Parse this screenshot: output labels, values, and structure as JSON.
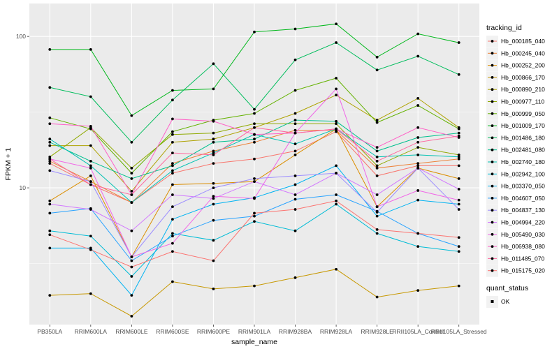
{
  "chart_data": {
    "type": "line",
    "xlabel": "sample_name",
    "ylabel": "FPKM + 1",
    "y_scale": "log10",
    "ylim": [
      1.25,
      165
    ],
    "y_ticks": [
      10,
      100
    ],
    "y_tick_labels": [
      "10",
      "100"
    ],
    "grid": true,
    "legend_position": "right",
    "categories": [
      "PB350LA",
      "RRIM600LA",
      "RRIM600LE",
      "RRIM600SE",
      "RRIM600PE",
      "RRIM901LA",
      "RRIM928BA",
      "RRIM928LA",
      "RRIM928LE",
      "RRII105LA_Control",
      "RRII105LA_Stressed"
    ],
    "category_labels": [
      "PB350LA",
      "RRIM600LA",
      "RRIM600LE",
      "RRIM600SE",
      "RRIM600PE",
      "RRIM901LA",
      "RRIM928BA",
      "RRIM928LA",
      "RRIM928LE",
      "RRII105LA_Control",
      "RRII105LA_Stressed"
    ],
    "legend_color_title": "tracking_id",
    "legend_shape_title": "quant_status",
    "legend_shape_entries": [
      "OK"
    ],
    "series": [
      {
        "name": "Hb_000185_040",
        "color": "#F8766D",
        "values": [
          14.5,
          10.5,
          8.0,
          12.5,
          14.5,
          15.5,
          17.5,
          23.5,
          12.0,
          14.0,
          14.0
        ]
      },
      {
        "name": "Hb_000245_040",
        "color": "#EC8239",
        "values": [
          15.0,
          11.0,
          8.0,
          14.5,
          17.5,
          20.0,
          24.0,
          24.0,
          13.5,
          14.5,
          15.5
        ]
      },
      {
        "name": "Hb_000252_200",
        "color": "#DB8E00",
        "values": [
          8.2,
          12.0,
          3.5,
          10.5,
          10.7,
          11.0,
          16.5,
          24.5,
          7.5,
          13.5,
          11.5
        ]
      },
      {
        "name": "Hb_000866_170",
        "color": "#C79800",
        "values": [
          1.95,
          2.0,
          1.42,
          2.4,
          2.15,
          2.25,
          2.55,
          2.9,
          1.9,
          2.1,
          2.25
        ]
      },
      {
        "name": "Hb_000890_210",
        "color": "#AEA200",
        "values": [
          19.0,
          19.0,
          9.5,
          20.0,
          21.0,
          25.0,
          31.0,
          41.0,
          28.0,
          39.0,
          25.0
        ]
      },
      {
        "name": "Hb_000977_110",
        "color": "#8FAA00",
        "values": [
          16.0,
          25.0,
          13.5,
          22.5,
          23.0,
          26.5,
          26.5,
          26.5,
          14.0,
          18.5,
          16.5
        ]
      },
      {
        "name": "Hb_000999_050",
        "color": "#64B200",
        "values": [
          29.0,
          24.5,
          12.5,
          23.5,
          28.0,
          31.0,
          44.0,
          53.0,
          27.0,
          35.0,
          24.5
        ]
      },
      {
        "name": "Hb_001009_170",
        "color": "#00B81B",
        "values": [
          82.0,
          82.0,
          30.0,
          44.0,
          45.0,
          107.0,
          112.0,
          121.0,
          73.0,
          104.0,
          91.0
        ]
      },
      {
        "name": "Hb_001486_180",
        "color": "#00BD5C",
        "values": [
          46.0,
          40.0,
          20.0,
          38.0,
          66.0,
          33.0,
          70.0,
          91.0,
          60.0,
          74.0,
          56.0
        ]
      },
      {
        "name": "Hb_002481_080",
        "color": "#00C08E",
        "values": [
          20.0,
          15.0,
          11.5,
          14.0,
          20.0,
          21.0,
          28.0,
          27.5,
          17.5,
          21.5,
          23.0
        ]
      },
      {
        "name": "Hb_002740_180",
        "color": "#00C1B2",
        "values": [
          21.0,
          14.0,
          8.0,
          13.0,
          17.0,
          22.5,
          19.5,
          24.5,
          16.0,
          16.5,
          16.0
        ]
      },
      {
        "name": "Hb_002942_100",
        "color": "#00BCD6",
        "values": [
          5.2,
          4.8,
          2.6,
          5.0,
          4.5,
          6.0,
          5.2,
          7.8,
          5.0,
          4.1,
          3.8
        ]
      },
      {
        "name": "Hb_003370_050",
        "color": "#00B3F2",
        "values": [
          4.0,
          4.0,
          1.95,
          6.2,
          7.8,
          8.6,
          10.5,
          14.0,
          6.5,
          8.3,
          7.8
        ]
      },
      {
        "name": "Hb_004607_050",
        "color": "#29A3FF",
        "values": [
          6.8,
          7.3,
          3.3,
          4.8,
          6.1,
          6.5,
          8.4,
          9.0,
          7.0,
          5.0,
          4.1
        ]
      },
      {
        "name": "Hb_004837_130",
        "color": "#9C8DFF",
        "values": [
          13.0,
          11.0,
          3.5,
          7.5,
          10.0,
          11.5,
          12.0,
          12.5,
          6.9,
          13.5,
          7.2
        ]
      },
      {
        "name": "Hb_004994_220",
        "color": "#D277FF",
        "values": [
          7.8,
          7.2,
          5.2,
          9.0,
          8.5,
          11.0,
          9.0,
          12.5,
          9.0,
          13.5,
          9.8
        ]
      },
      {
        "name": "Hb_005490_030",
        "color": "#F166E8",
        "values": [
          15.5,
          13.5,
          3.5,
          4.3,
          8.8,
          8.5,
          23.0,
          45.0,
          7.5,
          9.6,
          8.3
        ]
      },
      {
        "name": "Hb_006938_080",
        "color": "#FF61C7",
        "values": [
          26.5,
          25.5,
          9.0,
          28.5,
          27.5,
          22.5,
          23.0,
          24.5,
          18.5,
          25.0,
          21.5
        ]
      },
      {
        "name": "Hb_011485_070",
        "color": "#FF689E",
        "values": [
          15.5,
          10.5,
          9.0,
          17.0,
          16.5,
          25.0,
          23.0,
          24.5,
          15.0,
          20.0,
          22.0
        ]
      },
      {
        "name": "Hb_015175_020",
        "color": "#FC7370",
        "values": [
          4.9,
          3.9,
          3.0,
          3.8,
          3.3,
          6.8,
          7.2,
          8.2,
          5.3,
          5.0,
          4.7
        ]
      }
    ]
  }
}
